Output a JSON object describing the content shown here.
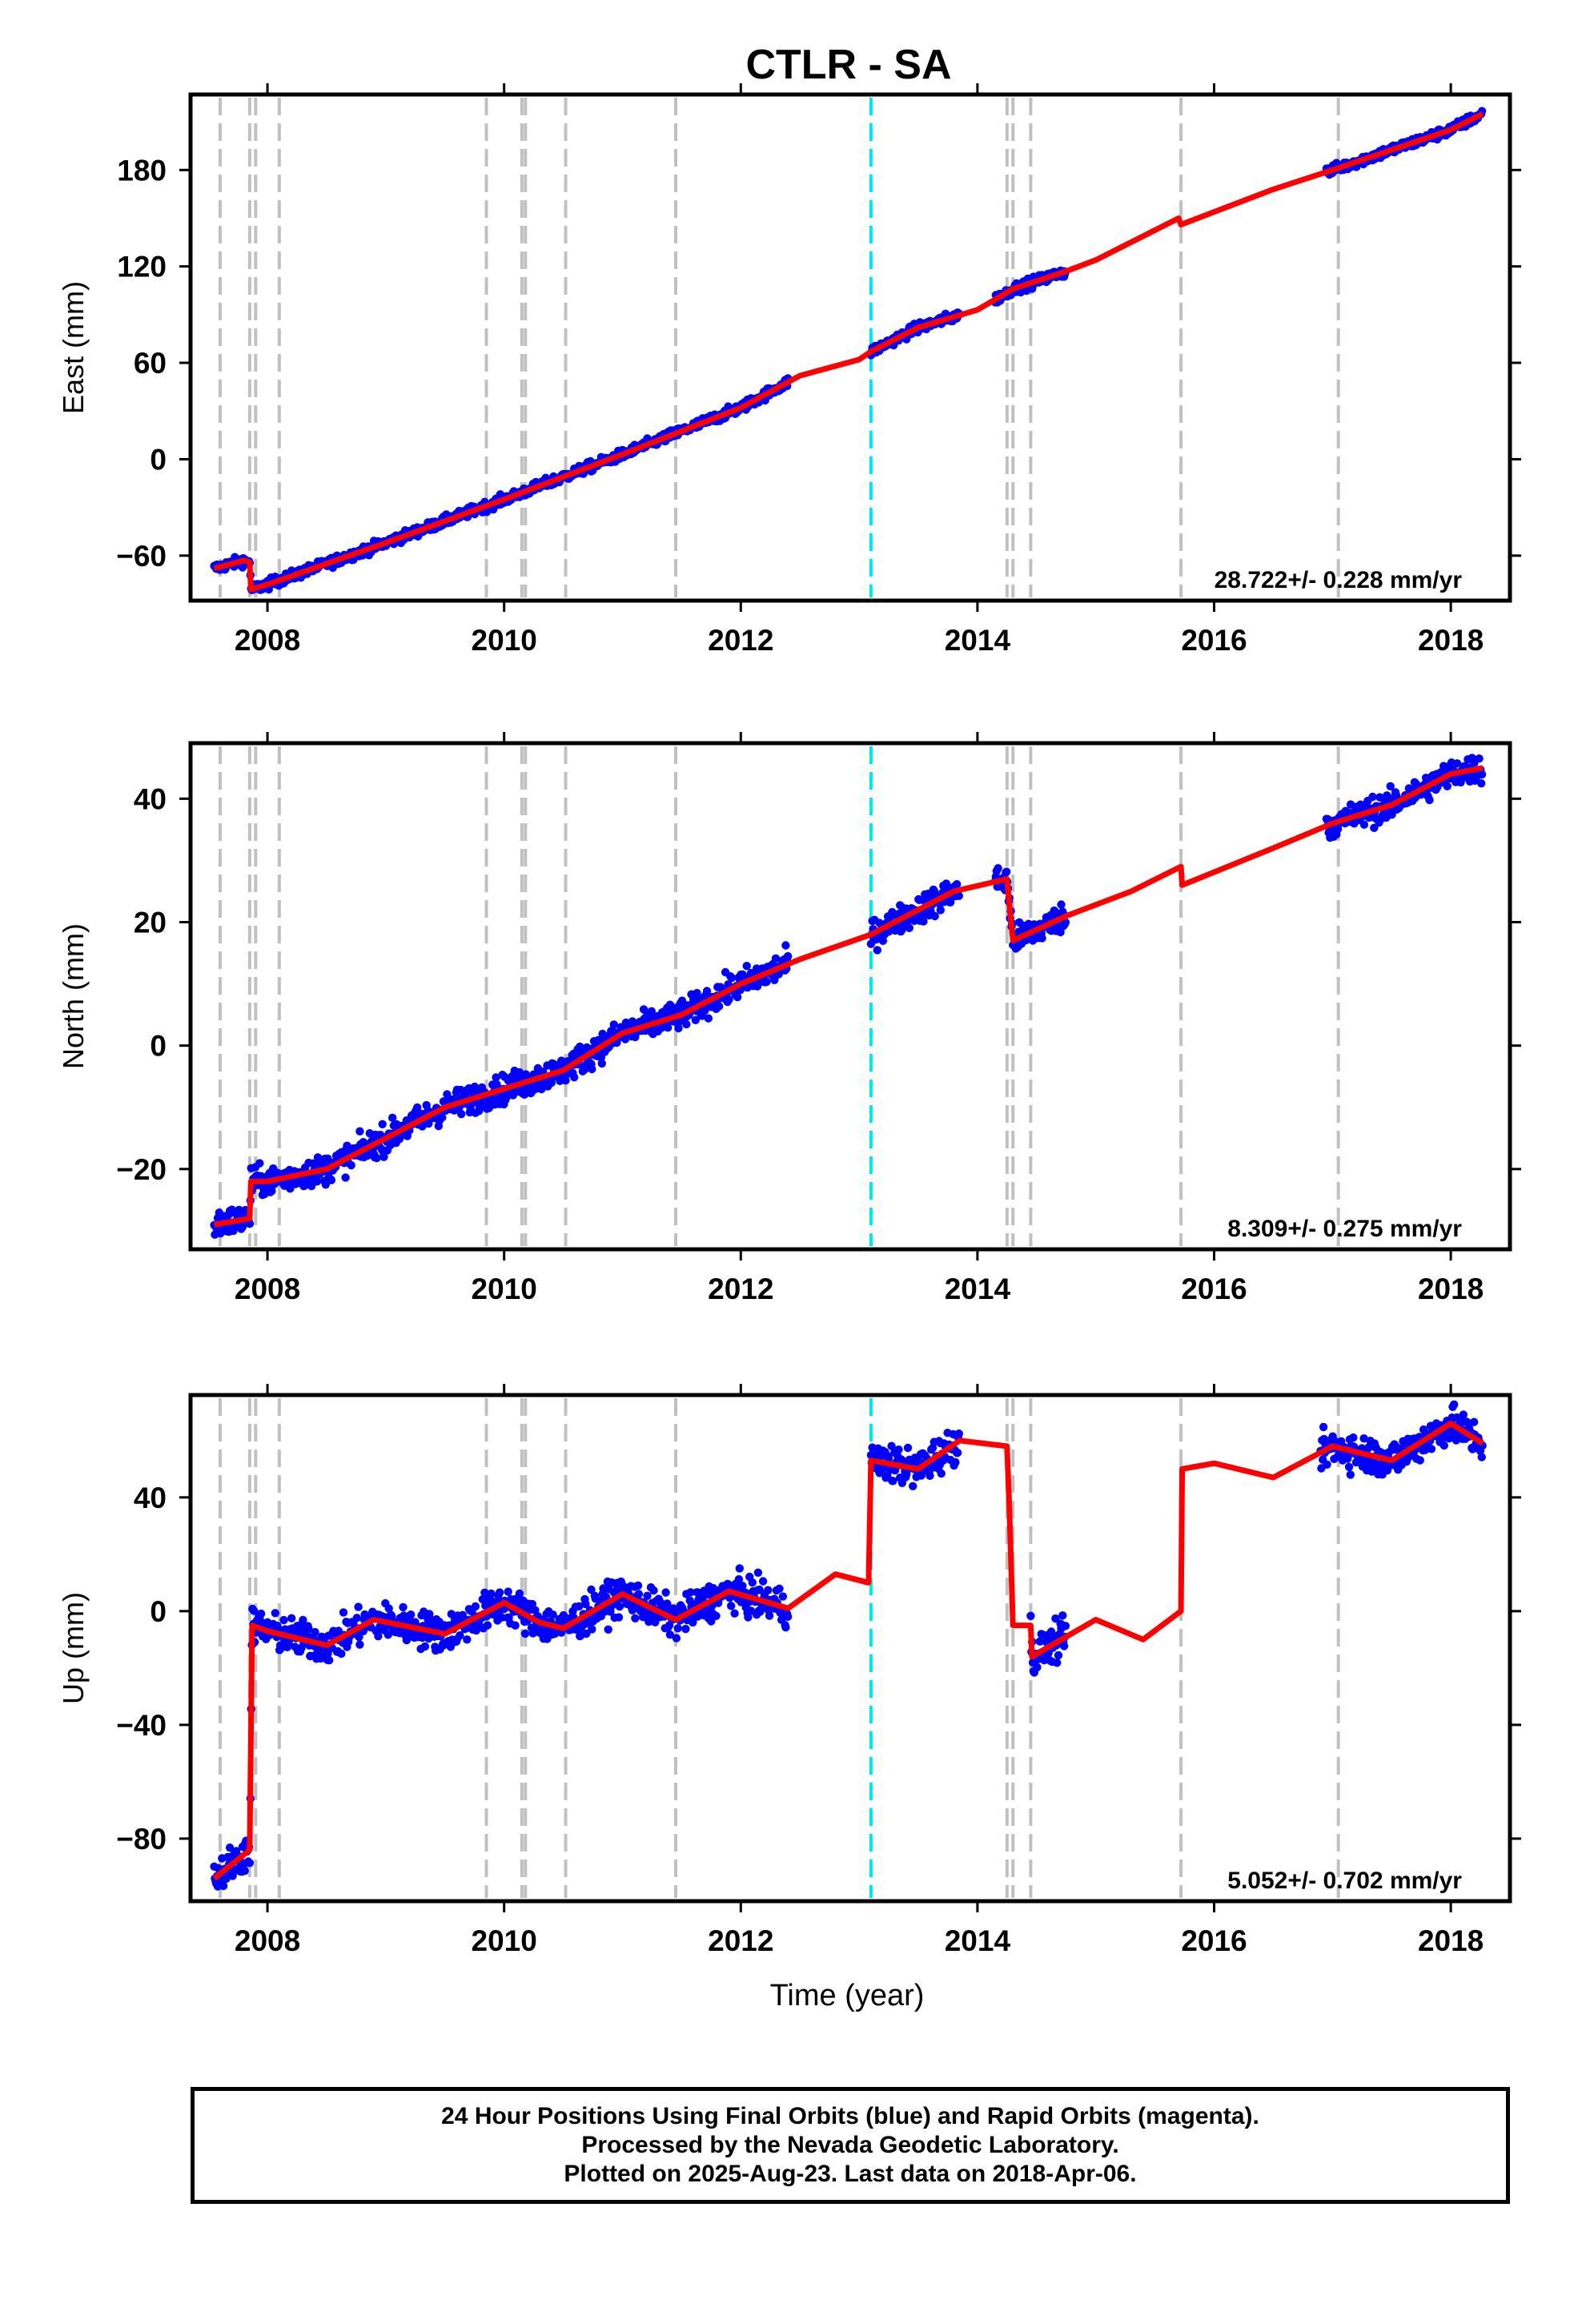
{
  "figure_title": "CTLR - SA",
  "x_axis_label": "Time (year)",
  "caption": [
    "24 Hour Positions Using Final Orbits (blue) and Rapid Orbits (magenta).",
    "Processed by the Nevada Geodetic Laboratory.",
    "Plotted on 2025-Aug-23. Last data on 2018-Apr-06."
  ],
  "colors": {
    "data_points": "#0000ff",
    "model_fit": "#ff0000",
    "event_lines": "#c0c0c0",
    "antenna_change_line": "#00e5ee",
    "frame": "#000000"
  },
  "chart_data": [
    {
      "type": "scatter",
      "component": "East",
      "ylabel": "East (mm)",
      "xlim": [
        2007.35,
        2018.5
      ],
      "ylim": [
        -88,
        227
      ],
      "x_ticks": [
        2008,
        2010,
        2012,
        2014,
        2016,
        2018
      ],
      "y_ticks": [
        -60,
        0,
        60,
        120,
        180
      ],
      "grid": false,
      "rate_label": "28.722+/- 0.228 mm/yr",
      "event_lines": [
        2007.6,
        2007.85,
        2007.9,
        2008.1,
        2009.85,
        2010.15,
        2010.18,
        2010.52,
        2011.45,
        2014.25,
        2014.3,
        2014.45,
        2015.72,
        2017.05
      ],
      "antenna_change": [
        2013.1
      ],
      "data_segments": [
        [
          2007.55,
          2012.4
        ],
        [
          2013.1,
          2013.85
        ],
        [
          2014.15,
          2014.75
        ],
        [
          2016.95,
          2018.27
        ]
      ],
      "model_fit": [
        [
          2007.55,
          -68
        ],
        [
          2007.8,
          -63
        ],
        [
          2007.85,
          -64
        ],
        [
          2007.86,
          -81
        ],
        [
          2008.0,
          -78
        ],
        [
          2009.0,
          -52
        ],
        [
          2010.0,
          -25
        ],
        [
          2011.0,
          3
        ],
        [
          2012.0,
          32
        ],
        [
          2012.5,
          52
        ],
        [
          2013.0,
          62
        ],
        [
          2013.1,
          67
        ],
        [
          2013.5,
          82
        ],
        [
          2014.0,
          93
        ],
        [
          2014.3,
          106
        ],
        [
          2014.75,
          117
        ],
        [
          2015.0,
          124
        ],
        [
          2015.7,
          150
        ],
        [
          2015.72,
          146
        ],
        [
          2016.5,
          168
        ],
        [
          2017.0,
          180
        ],
        [
          2018.0,
          205
        ],
        [
          2018.27,
          215
        ]
      ],
      "scatter_noise": 2.2
    },
    {
      "type": "scatter",
      "component": "North",
      "ylabel": "North (mm)",
      "xlim": [
        2007.35,
        2018.5
      ],
      "ylim": [
        -33,
        49
      ],
      "x_ticks": [
        2008,
        2010,
        2012,
        2014,
        2016,
        2018
      ],
      "y_ticks": [
        -20,
        0,
        20,
        40
      ],
      "grid": false,
      "rate_label": "8.309+/- 0.275 mm/yr",
      "event_lines": [
        2007.6,
        2007.85,
        2007.9,
        2008.1,
        2009.85,
        2010.15,
        2010.18,
        2010.52,
        2011.45,
        2014.25,
        2014.3,
        2014.45,
        2015.72,
        2017.05
      ],
      "antenna_change": [
        2013.1
      ],
      "data_segments": [
        [
          2007.55,
          2012.4
        ],
        [
          2013.1,
          2013.85
        ],
        [
          2014.15,
          2014.75
        ],
        [
          2016.95,
          2018.27
        ]
      ],
      "model_fit": [
        [
          2007.55,
          -29
        ],
        [
          2007.85,
          -28
        ],
        [
          2007.86,
          -22
        ],
        [
          2008.0,
          -22
        ],
        [
          2008.5,
          -20
        ],
        [
          2009.0,
          -15
        ],
        [
          2009.5,
          -10
        ],
        [
          2010.0,
          -7
        ],
        [
          2010.5,
          -4
        ],
        [
          2011.0,
          2
        ],
        [
          2011.5,
          5
        ],
        [
          2012.0,
          10
        ],
        [
          2012.5,
          14
        ],
        [
          2013.1,
          18
        ],
        [
          2013.5,
          22
        ],
        [
          2013.8,
          25
        ],
        [
          2014.25,
          27
        ],
        [
          2014.3,
          17
        ],
        [
          2014.75,
          21
        ],
        [
          2015.3,
          25
        ],
        [
          2015.72,
          29
        ],
        [
          2015.73,
          26
        ],
        [
          2016.5,
          32
        ],
        [
          2017.0,
          36
        ],
        [
          2017.5,
          39
        ],
        [
          2018.0,
          44
        ],
        [
          2018.27,
          45
        ]
      ],
      "scatter_noise": 1.6
    },
    {
      "type": "scatter",
      "component": "Up",
      "ylabel": "Up (mm)",
      "xlim": [
        2007.35,
        2018.5
      ],
      "ylim": [
        -102,
        76
      ],
      "x_ticks": [
        2008,
        2010,
        2012,
        2014,
        2016,
        2018
      ],
      "y_ticks": [
        -80,
        -40,
        0,
        40
      ],
      "grid": false,
      "rate_label": "5.052+/- 0.702 mm/yr",
      "event_lines": [
        2007.6,
        2007.85,
        2007.9,
        2008.1,
        2009.85,
        2010.15,
        2010.18,
        2010.52,
        2011.45,
        2014.25,
        2014.3,
        2014.45,
        2015.72,
        2017.05
      ],
      "antenna_change": [
        2013.1
      ],
      "data_segments": [
        [
          2007.55,
          2012.4
        ],
        [
          2013.1,
          2013.85
        ],
        [
          2014.45,
          2014.75
        ],
        [
          2016.9,
          2018.27
        ]
      ],
      "model_fit": [
        [
          2007.55,
          -94
        ],
        [
          2007.85,
          -84
        ],
        [
          2007.87,
          -5
        ],
        [
          2008.0,
          -7
        ],
        [
          2008.5,
          -12
        ],
        [
          2008.9,
          -3
        ],
        [
          2009.5,
          -8
        ],
        [
          2010.0,
          3
        ],
        [
          2010.3,
          -4
        ],
        [
          2010.5,
          -6
        ],
        [
          2011.0,
          6
        ],
        [
          2011.45,
          -3
        ],
        [
          2011.9,
          7
        ],
        [
          2012.4,
          1
        ],
        [
          2012.8,
          13
        ],
        [
          2013.08,
          10
        ],
        [
          2013.1,
          53
        ],
        [
          2013.5,
          50
        ],
        [
          2013.85,
          60
        ],
        [
          2014.25,
          58
        ],
        [
          2014.27,
          36
        ],
        [
          2014.3,
          -5
        ],
        [
          2014.45,
          -5
        ],
        [
          2014.46,
          -16
        ],
        [
          2014.75,
          -9
        ],
        [
          2015.0,
          -3
        ],
        [
          2015.4,
          -10
        ],
        [
          2015.72,
          0
        ],
        [
          2015.73,
          50
        ],
        [
          2016.0,
          52
        ],
        [
          2016.5,
          47
        ],
        [
          2017.0,
          58
        ],
        [
          2017.5,
          53
        ],
        [
          2018.0,
          66
        ],
        [
          2018.27,
          59
        ]
      ],
      "scatter_noise": 4.5
    }
  ]
}
